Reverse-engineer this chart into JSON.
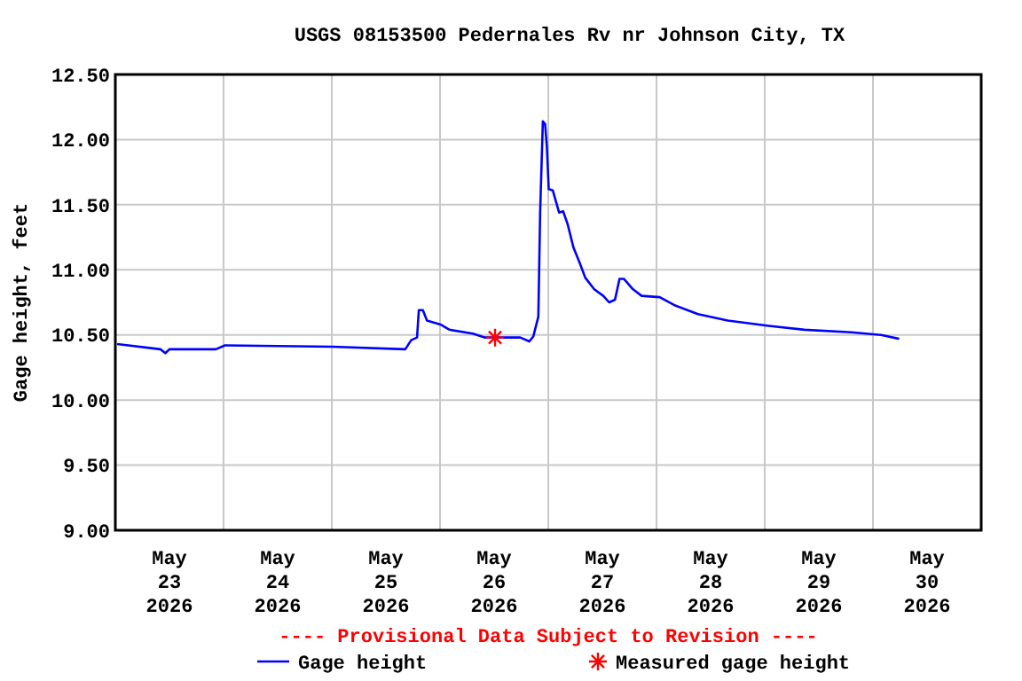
{
  "chart_data": {
    "type": "line",
    "title": "USGS 08153500 Pedernales Rv nr Johnson City, TX",
    "ylabel": "Gage height, feet",
    "annotations": [
      "---- Provisional Data Subject to Revision ----"
    ],
    "xlim": [
      "2026-05-23",
      "2026-05-31"
    ],
    "xticks": [
      {
        "value": "2026-05-23T12:00",
        "label": "May\n23\n2026"
      },
      {
        "value": "2026-05-24",
        "label": null
      },
      {
        "value": "2026-05-24T12:00",
        "label": "May\n24\n2026"
      },
      {
        "value": "2026-05-25",
        "label": null
      },
      {
        "value": "2026-05-25T12:00",
        "label": "May\n25\n2026"
      },
      {
        "value": "2026-05-26",
        "label": null
      },
      {
        "value": "2026-05-26T12:00",
        "label": "May\n26\n2026"
      },
      {
        "value": "2026-05-27",
        "label": null
      },
      {
        "value": "2026-05-27T12:00",
        "label": "May\n27\n2026"
      },
      {
        "value": "2026-05-28",
        "label": null
      },
      {
        "value": "2026-05-28T12:00",
        "label": "May\n28\n2026"
      },
      {
        "value": "2026-05-29",
        "label": null
      },
      {
        "value": "2026-05-29T12:00",
        "label": "May\n29\n2026"
      },
      {
        "value": "2026-05-30",
        "label": null
      },
      {
        "value": "2026-05-30T12:00",
        "label": "May\n30\n2026"
      }
    ],
    "ylim": [
      9,
      12.5
    ],
    "yticks": [
      {
        "value": 9,
        "label": "9.00"
      },
      {
        "value": 9.5,
        "label": "9.50"
      },
      {
        "value": 10,
        "label": "10.00"
      },
      {
        "value": 10.5,
        "label": "10.50"
      },
      {
        "value": 11,
        "label": "11.00"
      },
      {
        "value": 11.5,
        "label": "11.50"
      },
      {
        "value": 12,
        "label": "12.00"
      },
      {
        "value": 12.5,
        "label": "12.50"
      }
    ],
    "grid": true,
    "legend": "bottom",
    "series": [
      {
        "name": "Gage height",
        "color": "#0000ff",
        "line_style": "solid",
        "marker": "none",
        "x": [
          "2026-05-23T00:24",
          "2026-05-23T10:00",
          "2026-05-23T11:06",
          "2026-05-23T12:00",
          "2026-05-23T22:18",
          "2026-05-24T00:18",
          "2026-05-25T00:00",
          "2026-05-25T16:18",
          "2026-05-25T17:36",
          "2026-05-25T18:54",
          "2026-05-25T19:18",
          "2026-05-25T20:12",
          "2026-05-25T21:06",
          "2026-05-26T00:06",
          "2026-05-26T02:06",
          "2026-05-26T07:18",
          "2026-05-26T10:00",
          "2026-05-26T17:48",
          "2026-05-26T19:48",
          "2026-05-26T20:42",
          "2026-05-26T21:48",
          "2026-05-26T22:12",
          "2026-05-26T22:48",
          "2026-05-26T23:18",
          "2026-05-26T23:42",
          "2026-05-27T00:06",
          "2026-05-27T01:00",
          "2026-05-27T02:24",
          "2026-05-27T03:18",
          "2026-05-27T04:18",
          "2026-05-27T05:36",
          "2026-05-27T06:54",
          "2026-05-27T08:12",
          "2026-05-27T10:12",
          "2026-05-27T12:12",
          "2026-05-27T13:30",
          "2026-05-27T14:48",
          "2026-05-27T15:48",
          "2026-05-27T16:48",
          "2026-05-27T18:48",
          "2026-05-27T20:42",
          "2026-05-28T00:42",
          "2026-05-28T03:54",
          "2026-05-28T09:12",
          "2026-05-28T15:48",
          "2026-05-29T00:54",
          "2026-05-29T08:48",
          "2026-05-29T19:12",
          "2026-05-30T01:48",
          "2026-05-30T05:48"
        ],
        "values": [
          10.43,
          10.39,
          10.36,
          10.39,
          10.39,
          10.42,
          10.41,
          10.39,
          10.46,
          10.48,
          10.69,
          10.69,
          10.61,
          10.58,
          10.54,
          10.51,
          10.48,
          10.48,
          10.45,
          10.49,
          10.64,
          11.44,
          12.14,
          12.12,
          11.94,
          11.62,
          11.61,
          11.44,
          11.45,
          11.35,
          11.17,
          11.06,
          10.94,
          10.85,
          10.8,
          10.75,
          10.77,
          10.93,
          10.93,
          10.85,
          10.8,
          10.79,
          10.73,
          10.66,
          10.61,
          10.57,
          10.54,
          10.52,
          10.5,
          10.47
        ]
      },
      {
        "name": "Measured gage height",
        "type": "scatter",
        "color": "#ff0000",
        "marker": "cross",
        "x": [
          "2026-05-26T12:12"
        ],
        "values": [
          10.48
        ]
      }
    ]
  }
}
